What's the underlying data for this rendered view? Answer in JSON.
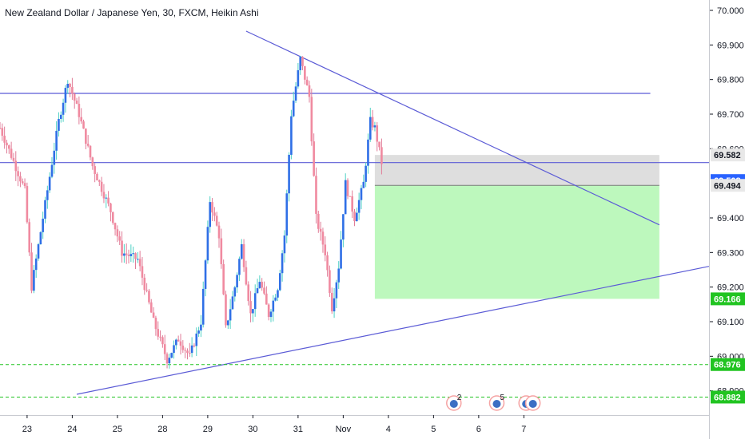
{
  "chart_data": {
    "type": "candlestick",
    "title": "New Zealand Dollar / Japanese Yen, 30, FXCM, Heikin Ashi",
    "ylim": [
      68.83,
      70.03
    ],
    "xlim": [
      -2.6,
      13.1
    ],
    "y_ticks": [
      {
        "value": 70.0,
        "label": "70.000"
      },
      {
        "value": 69.9,
        "label": "69.900"
      },
      {
        "value": 69.8,
        "label": "69.800"
      },
      {
        "value": 69.7,
        "label": "69.700"
      },
      {
        "value": 69.6,
        "label": "69.600"
      },
      {
        "value": 69.4,
        "label": "69.400"
      },
      {
        "value": 69.3,
        "label": "69.300"
      },
      {
        "value": 69.2,
        "label": "69.200"
      },
      {
        "value": 69.1,
        "label": "69.100"
      },
      {
        "value": 69.0,
        "label": "69.000"
      },
      {
        "value": 68.9,
        "label": "68.900"
      }
    ],
    "x_ticks": [
      {
        "value": -2,
        "label": "23"
      },
      {
        "value": -1,
        "label": "24"
      },
      {
        "value": 0,
        "label": "25"
      },
      {
        "value": 1,
        "label": "28"
      },
      {
        "value": 2,
        "label": "29"
      },
      {
        "value": 3,
        "label": "30"
      },
      {
        "value": 4,
        "label": "31"
      },
      {
        "value": 5,
        "label": "Nov"
      },
      {
        "value": 6,
        "label": "4"
      },
      {
        "value": 7,
        "label": "5"
      },
      {
        "value": 8,
        "label": "6"
      },
      {
        "value": 9,
        "label": "7"
      }
    ],
    "price_path": [
      {
        "x": -2.6,
        "y": 69.66
      },
      {
        "x": -2.35,
        "y": 69.58
      },
      {
        "x": -2.05,
        "y": 69.48
      },
      {
        "x": -1.9,
        "y": 69.2
      },
      {
        "x": -1.65,
        "y": 69.4
      },
      {
        "x": -1.3,
        "y": 69.68
      },
      {
        "x": -1.1,
        "y": 69.8
      },
      {
        "x": -0.85,
        "y": 69.7
      },
      {
        "x": -0.55,
        "y": 69.55
      },
      {
        "x": -0.15,
        "y": 69.42
      },
      {
        "x": 0.1,
        "y": 69.3
      },
      {
        "x": 0.45,
        "y": 69.28
      },
      {
        "x": 0.8,
        "y": 69.1
      },
      {
        "x": 1.1,
        "y": 68.99
      },
      {
        "x": 1.35,
        "y": 69.05
      },
      {
        "x": 1.6,
        "y": 69.0
      },
      {
        "x": 1.85,
        "y": 69.1
      },
      {
        "x": 2.05,
        "y": 69.45
      },
      {
        "x": 2.25,
        "y": 69.35
      },
      {
        "x": 2.4,
        "y": 69.08
      },
      {
        "x": 2.6,
        "y": 69.2
      },
      {
        "x": 2.75,
        "y": 69.32
      },
      {
        "x": 2.95,
        "y": 69.12
      },
      {
        "x": 3.15,
        "y": 69.22
      },
      {
        "x": 3.35,
        "y": 69.12
      },
      {
        "x": 3.55,
        "y": 69.2
      },
      {
        "x": 3.7,
        "y": 69.35
      },
      {
        "x": 3.85,
        "y": 69.7
      },
      {
        "x": 4.05,
        "y": 69.86
      },
      {
        "x": 4.25,
        "y": 69.75
      },
      {
        "x": 4.4,
        "y": 69.4
      },
      {
        "x": 4.6,
        "y": 69.3
      },
      {
        "x": 4.75,
        "y": 69.14
      },
      {
        "x": 4.9,
        "y": 69.26
      },
      {
        "x": 5.05,
        "y": 69.5
      },
      {
        "x": 5.25,
        "y": 69.4
      },
      {
        "x": 5.45,
        "y": 69.5
      },
      {
        "x": 5.6,
        "y": 69.68
      },
      {
        "x": 5.7,
        "y": 69.66
      },
      {
        "x": 5.85,
        "y": 69.56
      }
    ],
    "annotations": {
      "horizontal_lines": [
        {
          "name": "resistance-upper",
          "y": 69.76,
          "x1": -2.6,
          "x2": 11.8,
          "color": "#5b5bd6"
        },
        {
          "name": "resistance-mid",
          "y": 69.56,
          "x1": -2.6,
          "x2": 13.1,
          "color": "#5b5bd6"
        }
      ],
      "trend_lines": [
        {
          "name": "descending-trendline",
          "x1": 2.85,
          "y1": 69.94,
          "x2": 12.0,
          "y2": 69.38,
          "color": "#5b5bd6"
        },
        {
          "name": "ascending-trendline",
          "x1": -0.9,
          "y1": 68.89,
          "x2": 13.1,
          "y2": 69.26,
          "color": "#5b5bd6"
        }
      ],
      "dashed_lines": [
        {
          "name": "level-68976",
          "y": 68.976,
          "color": "#21c421"
        },
        {
          "name": "level-68882",
          "y": 68.882,
          "color": "#21c421"
        }
      ],
      "position": {
        "x_start": 5.7,
        "x_end": 12.0,
        "entry": 69.494,
        "stop": 69.582,
        "target": 69.166,
        "stop_color": "#d8d8d8",
        "target_color": "#b6f7b6"
      }
    },
    "price_tags": [
      {
        "value": 69.582,
        "label": "69.582",
        "bg": "#e8e8e8",
        "fg": "#131722"
      },
      {
        "value": 69.508,
        "label": "69.508",
        "bg": "#2962ff",
        "fg": "#ffffff"
      },
      {
        "value": 69.494,
        "label": "69.494",
        "bg": "#e8e8e8",
        "fg": "#131722"
      },
      {
        "value": 69.166,
        "label": "69.166",
        "bg": "#21c421",
        "fg": "#ffffff"
      },
      {
        "value": 68.976,
        "label": "68.976",
        "bg": "#21c421",
        "fg": "#ffffff"
      },
      {
        "value": 68.882,
        "label": "68.882",
        "bg": "#21c421",
        "fg": "#ffffff"
      }
    ],
    "events": [
      {
        "x": 7.45,
        "count": "2"
      },
      {
        "x": 8.4,
        "count": "5"
      },
      {
        "x": 9.05,
        "count": ""
      },
      {
        "x": 9.2,
        "count": ""
      }
    ],
    "colors": {
      "up": "#2f6fe6",
      "down": "#f08aa0",
      "up_wick": "#4fd1c5",
      "down_wick": "#e07c98",
      "line": "#5b5bd6",
      "axis": "#131722"
    }
  }
}
